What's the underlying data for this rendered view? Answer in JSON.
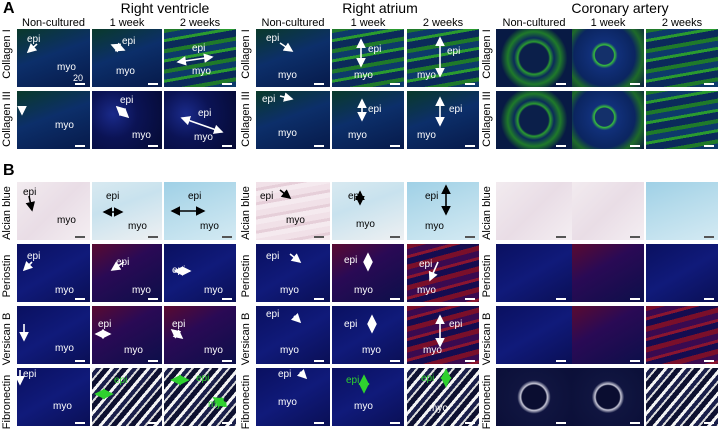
{
  "panels": {
    "a": "A",
    "b": "B"
  },
  "groups": [
    {
      "title": "Right ventricle",
      "cols": [
        "Non-cultured",
        "1 week",
        "2 weeks"
      ]
    },
    {
      "title": "Right atrium",
      "cols": [
        "Non-cultured",
        "1 week",
        "2 weeks"
      ]
    },
    {
      "title": "Coronary artery",
      "cols": [
        "Non-cultured",
        "1 week",
        "2 weeks"
      ]
    }
  ],
  "rows_a": [
    "Collagen I",
    "Collagen III"
  ],
  "rows_b": [
    "Alcian blue",
    "Periostin",
    "Versican B",
    "Fibronectin"
  ],
  "labels": {
    "epi": "epi",
    "myo": "myo",
    "scale": "20"
  },
  "colors": {
    "arrow_white": "#ffffff",
    "arrow_black": "#000000",
    "arrow_green": "#2fd12f"
  }
}
